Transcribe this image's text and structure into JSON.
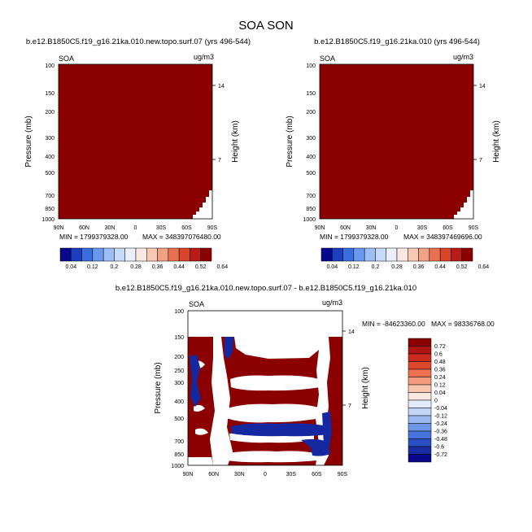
{
  "figure_title": "SOA SON",
  "chart_data": [
    {
      "type": "heatmap",
      "title": "b.e12.B1850C5.f19_g16.21ka.010.new.topo.surf.07 (yrs 496-544)",
      "variable": "SOA",
      "units": "ug/m3",
      "ylabel": "Pressure (mb)",
      "ylabel_right": "Height (km)",
      "x_ticks": [
        "90N",
        "60N",
        "30N",
        "0",
        "30S",
        "60S",
        "90S"
      ],
      "y_ticks": [
        "100",
        "150",
        "200",
        "300",
        "400",
        "500",
        "700",
        "850",
        "1000"
      ],
      "y_ticks_right": [
        "14",
        "7"
      ],
      "min_label": "MIN = 1799379328.00",
      "max_label": "MAX = 34839707648​0.00",
      "fill_color": "#8b0000",
      "description_value": "field saturated above top of color scale everywhere"
    },
    {
      "type": "heatmap",
      "title": "b.e12.B1850C5.f19_g16.21ka.010 (yrs 496-544)",
      "variable": "SOA",
      "units": "ug/m3",
      "ylabel": "Pressure (mb)",
      "ylabel_right": "Height (km)",
      "x_ticks": [
        "90N",
        "60N",
        "30N",
        "0",
        "30S",
        "60S",
        "90S"
      ],
      "y_ticks": [
        "100",
        "150",
        "200",
        "300",
        "400",
        "500",
        "700",
        "850",
        "1000"
      ],
      "y_ticks_right": [
        "14",
        "7"
      ],
      "min_label": "MIN = 1799379328.00",
      "max_label": "MAX = 348397469696.00",
      "fill_color": "#8b0000"
    },
    {
      "type": "heatmap",
      "title": "b.e12.B1850C5.f19_g16.21ka.010.new.topo.surf.07 - b.e12.B1850C5.f19_g16.21ka.010",
      "variable": "SOA",
      "units": "ug/m3",
      "ylabel": "Pressure (mb)",
      "ylabel_right": "Height (km)",
      "x_ticks": [
        "90N",
        "60N",
        "30N",
        "0",
        "30S",
        "60S",
        "90S"
      ],
      "y_ticks": [
        "100",
        "150",
        "200",
        "250",
        "300",
        "400",
        "500",
        "700",
        "850",
        "1000"
      ],
      "y_ticks_right": [
        "14",
        "7"
      ],
      "min_label": "MIN = -84623360.00",
      "max_label": "MAX = 98336768.00"
    }
  ],
  "colorbar_top": {
    "labels": [
      "0.04",
      "0.12",
      "0.2",
      "0.28",
      "0.36",
      "0.44",
      "0.52",
      "0.64"
    ],
    "colors": [
      "#08088a",
      "#1c3fbf",
      "#3a6ee0",
      "#6a97f0",
      "#9dbdf5",
      "#c6dbf7",
      "#eaf0fb",
      "#fbe8e2",
      "#f7c9b5",
      "#f2a182",
      "#e8714f",
      "#d9452b",
      "#b71d16",
      "#8b0000"
    ]
  },
  "colorbar_diff": {
    "labels": [
      "0.72",
      "0.6",
      "0.48",
      "0.36",
      "0.24",
      "0.12",
      "0.04",
      "0",
      "-0.04",
      "-0.12",
      "-0.24",
      "-0.36",
      "-0.48",
      "-0.6",
      "-0.72"
    ],
    "colors": [
      "#8b0000",
      "#b01412",
      "#cc2a1c",
      "#e0482e",
      "#ee7050",
      "#f59c80",
      "#f9c6b2",
      "#fbe8e0",
      "#e4ecfb",
      "#c3d6f6",
      "#99b8f0",
      "#6f97e8",
      "#4674dc",
      "#2a4fc4",
      "#1a2ea2",
      "#08088a"
    ]
  }
}
